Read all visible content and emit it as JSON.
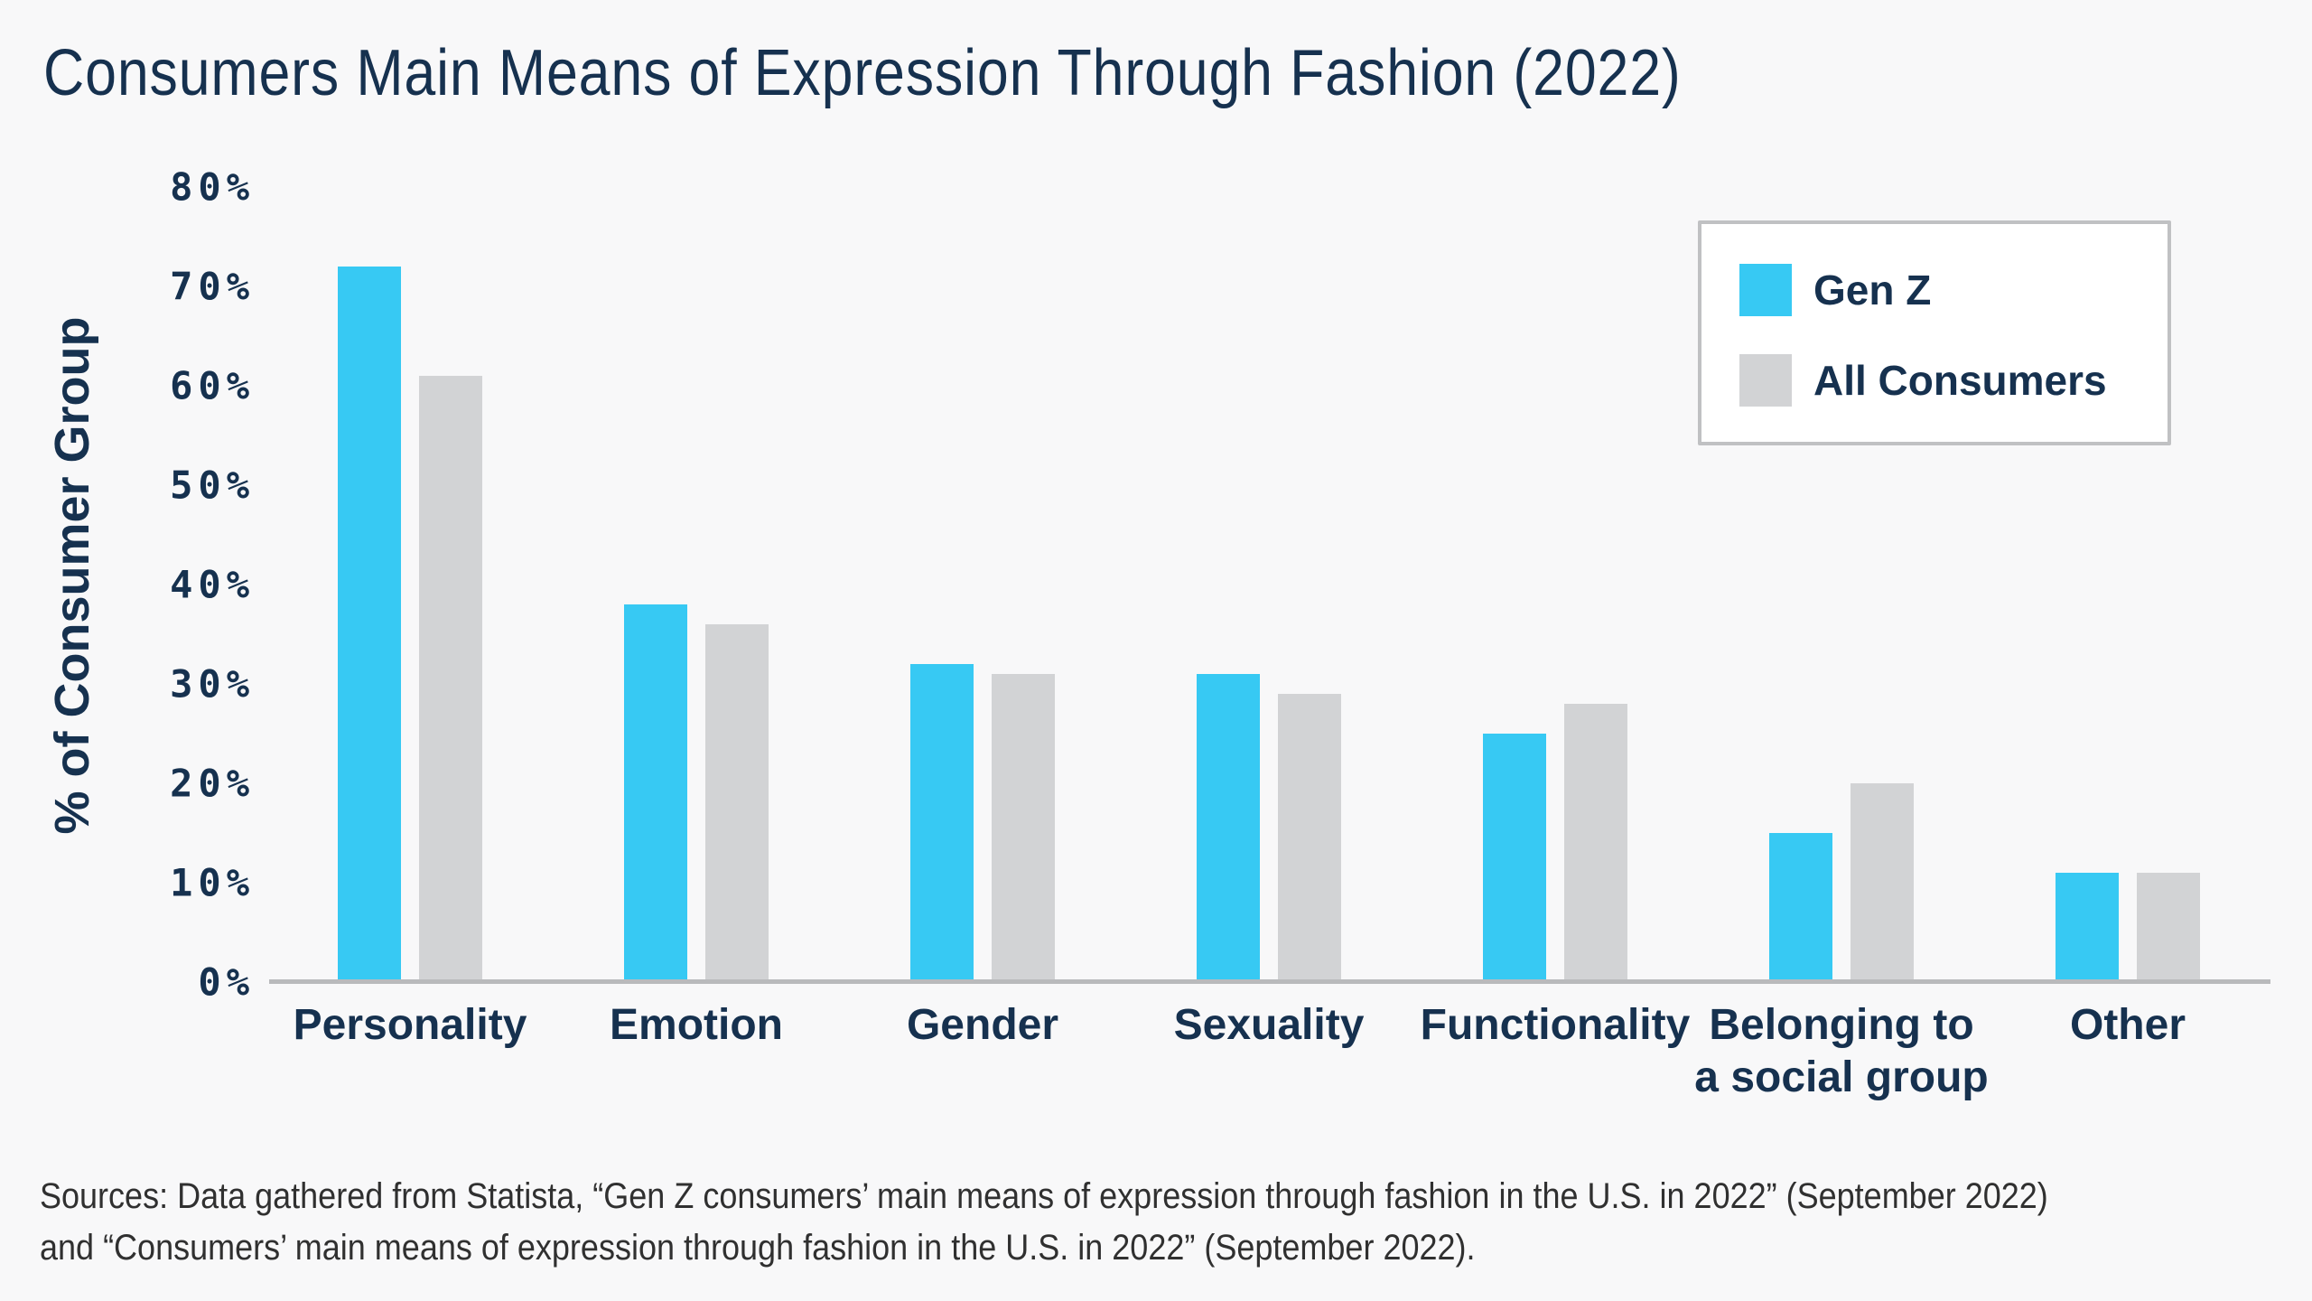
{
  "header": {
    "title": "Consumers Main Means of Expression Through Fashion (2022)"
  },
  "chart_data": {
    "type": "bar",
    "title": "Consumers Main Means of Expression Through Fashion (2022)",
    "categories": [
      "Personality",
      "Emotion",
      "Gender",
      "Sexuality",
      "Functionality",
      "Belonging to\na social group",
      "Other"
    ],
    "series": [
      {
        "name": "Gen Z",
        "color": "#37c9f3",
        "values": [
          72,
          38,
          32,
          31,
          25,
          15,
          11
        ]
      },
      {
        "name": "All Consumers",
        "color": "#d2d3d5",
        "values": [
          61,
          36,
          31,
          29,
          28,
          20,
          11
        ]
      }
    ],
    "xlabel": "",
    "ylabel": "% of Consumer Group",
    "ylim": [
      0,
      80
    ],
    "ytick_step": 10,
    "tick_labels": [
      "0%",
      "10%",
      "20%",
      "30%",
      "40%",
      "50%",
      "60%",
      "70%",
      "80%"
    ],
    "grid": false,
    "legend_position": "top-right"
  },
  "footer": {
    "sources_line1": "Sources: Data gathered from Statista, “Gen Z consumers’ main means of expression through fashion in the U.S. in 2022” (September 2022)",
    "sources_line2": "and “Consumers’ main means of expression through fashion in the U.S. in 2022” (September 2022)."
  },
  "colors": {
    "background": "#f8f8f9",
    "accent_cyan": "#37c9f3",
    "bar_gray": "#d2d3d5",
    "text_navy": "#16314f",
    "axis_line": "#b9babc",
    "legend_border": "#c0c1c3",
    "source_text": "#303030"
  }
}
